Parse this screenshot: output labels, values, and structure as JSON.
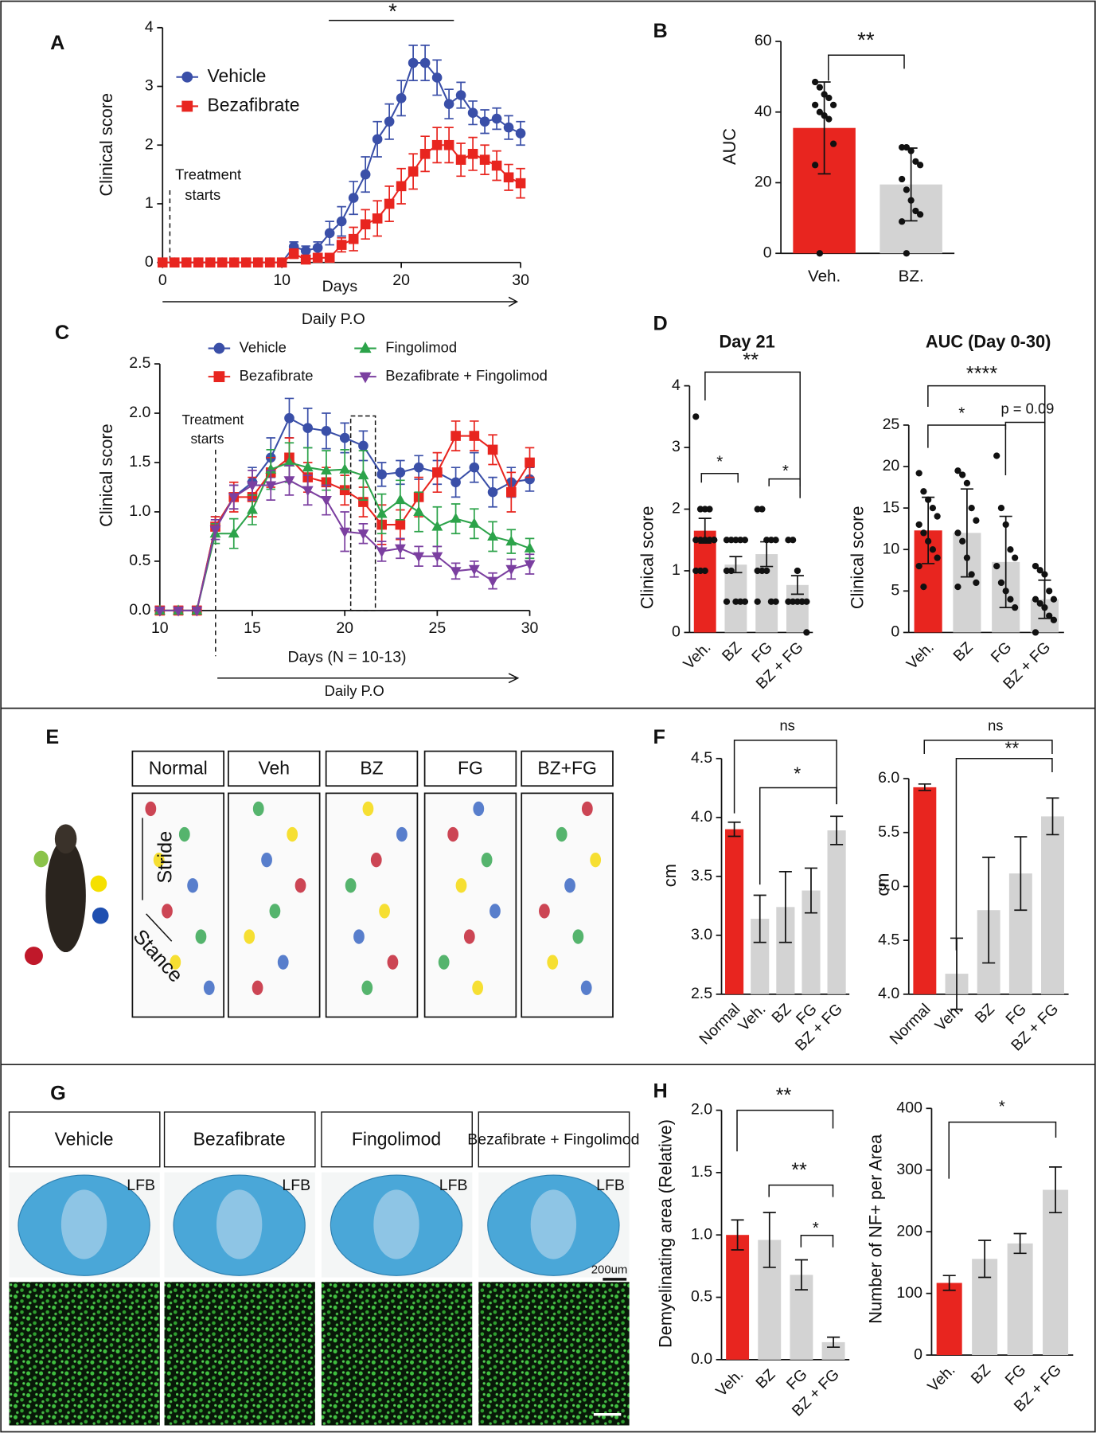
{
  "chart_data": [
    {
      "type": "line",
      "panel": "A",
      "y_label": "Clinical score",
      "x_label": "Days",
      "annotations": [
        "*",
        "Treatment",
        "starts",
        "Daily P.O"
      ],
      "x": [
        0,
        1,
        2,
        3,
        4,
        5,
        6,
        7,
        8,
        9,
        10,
        11,
        12,
        13,
        14,
        15,
        16,
        17,
        18,
        19,
        20,
        21,
        22,
        23,
        24,
        25,
        26,
        27,
        28,
        29,
        30
      ],
      "xlim": [
        0,
        30
      ],
      "xticks": [
        0,
        10,
        20,
        30
      ],
      "ylim": [
        0,
        4
      ],
      "yticks": [
        0,
        1,
        2,
        3,
        4
      ],
      "series": [
        {
          "name": "Vehicle",
          "color": "#3a4fa8",
          "marker": "circle",
          "values": [
            0,
            0,
            0,
            0,
            0,
            0,
            0,
            0,
            0,
            0,
            0,
            0.27,
            0.2,
            0.25,
            0.5,
            0.7,
            1.1,
            1.5,
            2.1,
            2.4,
            2.8,
            3.4,
            3.4,
            3.15,
            2.7,
            2.85,
            2.55,
            2.4,
            2.45,
            2.3,
            2.2
          ],
          "errors": [
            0,
            0,
            0,
            0,
            0,
            0,
            0,
            0,
            0,
            0,
            0,
            0.08,
            0.08,
            0.1,
            0.2,
            0.25,
            0.28,
            0.3,
            0.3,
            0.3,
            0.3,
            0.3,
            0.3,
            0.3,
            0.25,
            0.22,
            0.2,
            0.2,
            0.18,
            0.2,
            0.2
          ]
        },
        {
          "name": "Bezafibrate",
          "color": "#e8251f",
          "marker": "square",
          "values": [
            0,
            0,
            0,
            0,
            0,
            0,
            0,
            0,
            0,
            0,
            0,
            0.15,
            0.05,
            0.08,
            0.08,
            0.3,
            0.4,
            0.65,
            0.75,
            1.0,
            1.3,
            1.55,
            1.85,
            2.0,
            2.0,
            1.75,
            1.85,
            1.75,
            1.65,
            1.45,
            1.35
          ],
          "errors": [
            0,
            0,
            0,
            0,
            0,
            0,
            0,
            0,
            0,
            0,
            0,
            0.08,
            0.05,
            0.05,
            0.05,
            0.12,
            0.2,
            0.25,
            0.3,
            0.3,
            0.3,
            0.3,
            0.3,
            0.3,
            0.3,
            0.28,
            0.28,
            0.25,
            0.25,
            0.22,
            0.25
          ]
        }
      ]
    },
    {
      "type": "bar",
      "panel": "B",
      "y_label": "AUC",
      "annotations": [
        "**"
      ],
      "categories": [
        "Veh.",
        "BZ."
      ],
      "colors": [
        "#e8251f",
        "#d3d3d3"
      ],
      "values": [
        35.5,
        19.5
      ],
      "errors": [
        13,
        10.3
      ],
      "points": [
        [
          48.5,
          47,
          45,
          44,
          42,
          42,
          40,
          39,
          38,
          31,
          25,
          0
        ],
        [
          30,
          30,
          29,
          26,
          25,
          21,
          18,
          15,
          12,
          11,
          9,
          0
        ]
      ],
      "ylim": [
        0,
        60
      ],
      "yticks": [
        0,
        20,
        40,
        60
      ]
    },
    {
      "type": "line",
      "panel": "C",
      "y_label": "Clinical score",
      "x_label": "Days (N = 10-13)",
      "annotations": [
        "Treatment",
        "starts",
        "Daily P.O"
      ],
      "x": [
        10,
        11,
        12,
        13,
        14,
        15,
        16,
        17,
        18,
        19,
        20,
        21,
        22,
        23,
        24,
        25,
        26,
        27,
        28,
        29,
        30
      ],
      "xlim": [
        10,
        30
      ],
      "xticks": [
        10,
        15,
        20,
        25,
        30
      ],
      "ylim": [
        0,
        2.5
      ],
      "yticks": [
        {
          "value": 0,
          "label": "0.0"
        },
        0.5,
        {
          "value": 1,
          "label": "1.0"
        },
        1.5,
        {
          "value": 2,
          "label": "2.0"
        },
        2.5
      ],
      "series": [
        {
          "name": "Vehicle",
          "color": "#3a4fa8",
          "marker": "circle",
          "values": [
            0,
            0,
            0,
            0.85,
            1.15,
            1.3,
            1.55,
            1.95,
            1.85,
            1.82,
            1.75,
            1.67,
            1.38,
            1.4,
            1.45,
            1.4,
            1.3,
            1.45,
            1.2,
            1.3,
            1.33
          ],
          "errors": [
            0,
            0,
            0,
            0.1,
            0.12,
            0.15,
            0.2,
            0.2,
            0.2,
            0.18,
            0.15,
            0.15,
            0.12,
            0.12,
            0.12,
            0.12,
            0.15,
            0.15,
            0.15,
            0.15,
            0.12
          ]
        },
        {
          "name": "Bezafibrate",
          "color": "#e8251f",
          "marker": "square",
          "values": [
            0,
            0,
            0,
            0.85,
            1.15,
            1.15,
            1.4,
            1.55,
            1.35,
            1.3,
            1.22,
            1.1,
            0.87,
            0.87,
            1.15,
            1.4,
            1.77,
            1.77,
            1.63,
            1.2,
            1.5
          ],
          "errors": [
            0,
            0,
            0,
            0.1,
            0.15,
            0.2,
            0.15,
            0.2,
            0.15,
            0.15,
            0.15,
            0.15,
            0.2,
            0.15,
            0.2,
            0.2,
            0.15,
            0.15,
            0.15,
            0.2,
            0.15
          ]
        },
        {
          "name": "Fingolimod",
          "color": "#2ca34a",
          "marker": "triangle",
          "values": [
            0,
            0,
            0,
            0.78,
            0.78,
            1.02,
            1.43,
            1.5,
            1.45,
            1.42,
            1.43,
            1.37,
            0.98,
            1.12,
            1.0,
            0.85,
            0.93,
            0.88,
            0.75,
            0.7,
            0.63
          ],
          "errors": [
            0,
            0,
            0,
            0.1,
            0.15,
            0.15,
            0.2,
            0.2,
            0.2,
            0.2,
            0.2,
            0.25,
            0.2,
            0.2,
            0.2,
            0.2,
            0.15,
            0.15,
            0.15,
            0.12,
            0.1
          ]
        },
        {
          "name": "Bezafibrate + Fingolimod",
          "color": "#7b3fa0",
          "marker": "triangle-down",
          "values": [
            0,
            0,
            0,
            0.82,
            1.15,
            1.27,
            1.27,
            1.32,
            1.22,
            1.12,
            0.8,
            0.78,
            0.6,
            0.63,
            0.55,
            0.55,
            0.4,
            0.42,
            0.3,
            0.42,
            0.47
          ],
          "errors": [
            0,
            0,
            0,
            0.1,
            0.12,
            0.15,
            0.15,
            0.15,
            0.15,
            0.15,
            0.2,
            0.1,
            0.1,
            0.1,
            0.1,
            0.1,
            0.08,
            0.08,
            0.08,
            0.1,
            0.1
          ]
        }
      ]
    },
    {
      "type": "bar",
      "panel": "D",
      "title": "Day 21",
      "y_label": "Clinical score",
      "annotations": [
        "**",
        "*",
        "*"
      ],
      "categories": [
        "Veh.",
        "BZ",
        "FG",
        "BZ + FG"
      ],
      "colors": [
        "#e8251f",
        "#d3d3d3",
        "#d3d3d3",
        "#d3d3d3"
      ],
      "values": [
        1.65,
        1.1,
        1.27,
        0.77
      ],
      "errors": [
        0.2,
        0.13,
        0.2,
        0.15
      ],
      "points": [
        [
          3.5,
          2,
          2,
          2,
          1.5,
          1.5,
          1.5,
          1.5,
          1.5,
          1.5,
          1,
          1,
          1
        ],
        [
          1.5,
          1.5,
          1.5,
          1.5,
          1.5,
          1,
          1,
          0.5,
          0.5,
          0.5,
          0.5
        ],
        [
          2,
          2,
          1.5,
          1.5,
          1.5,
          1,
          1,
          1,
          0.5,
          0.5,
          0.5
        ],
        [
          1.5,
          1.5,
          1,
          0.5,
          0.5,
          0.5,
          0.5,
          0.5,
          0.5,
          0
        ]
      ],
      "ylim": [
        0,
        4
      ],
      "yticks": [
        0,
        1,
        2,
        3,
        4
      ]
    },
    {
      "type": "bar",
      "title": "AUC (Day 0-30)",
      "y_label": "Clinical score",
      "annotations": [
        "****",
        "*",
        "p = 0.09"
      ],
      "categories": [
        "Veh.",
        "BZ",
        "FG",
        "BZ + FG"
      ],
      "colors": [
        "#e8251f",
        "#d3d3d3",
        "#d3d3d3",
        "#d3d3d3"
      ],
      "values": [
        12.3,
        12.0,
        8.5,
        4.0
      ],
      "errors": [
        4,
        5.3,
        5.5,
        2.3
      ],
      "points": [
        [
          19.2,
          17,
          16,
          15,
          14,
          13,
          12,
          11,
          10,
          9,
          8,
          5.5
        ],
        [
          19.5,
          19,
          18,
          15,
          13.5,
          12,
          11,
          9,
          7,
          6,
          5.5
        ],
        [
          21.3,
          15,
          13,
          10,
          9,
          8,
          6,
          5,
          4,
          3
        ],
        [
          8,
          7.5,
          7,
          5,
          4,
          4,
          3.5,
          3,
          2,
          1.5,
          0
        ]
      ],
      "ylim": [
        0,
        25
      ],
      "yticks": [
        0,
        5,
        10,
        15,
        20,
        25
      ]
    },
    {
      "type": "bar",
      "panel": "F",
      "y_label": "cm",
      "annotations": [
        "ns",
        "*"
      ],
      "categories": [
        "Normal",
        "Veh.",
        "BZ",
        "FG",
        "BZ + FG"
      ],
      "colors": [
        "#e8251f",
        "#d3d3d3",
        "#d3d3d3",
        "#d3d3d3",
        "#d3d3d3"
      ],
      "values": [
        3.9,
        3.14,
        3.24,
        3.38,
        3.89
      ],
      "errors": [
        0.06,
        0.2,
        0.3,
        0.19,
        0.12
      ],
      "ylim": [
        2.5,
        4.5
      ],
      "yticks": [
        2.5,
        {
          "value": 3,
          "label": "3.0"
        },
        3.5,
        {
          "value": 4,
          "label": "4.0"
        },
        4.5
      ]
    },
    {
      "type": "bar",
      "y_label": "cm",
      "annotations": [
        "ns",
        "**"
      ],
      "categories": [
        "Normal",
        "Veh.",
        "BZ",
        "FG",
        "BZ + FG"
      ],
      "colors": [
        "#e8251f",
        "#d3d3d3",
        "#d3d3d3",
        "#d3d3d3",
        "#d3d3d3"
      ],
      "values": [
        5.92,
        4.19,
        4.78,
        5.12,
        5.65
      ],
      "errors": [
        0.03,
        0.33,
        0.49,
        0.34,
        0.17
      ],
      "ylim": [
        4,
        6
      ],
      "yticks": [
        {
          "value": 4,
          "label": "4.0"
        },
        4.5,
        {
          "value": 5,
          "label": "5.0"
        },
        5.5,
        {
          "value": 6,
          "label": "6.0"
        }
      ]
    },
    {
      "type": "bar",
      "panel": "H",
      "y_label": "Demyelinating area (Relative)",
      "annotations": [
        "**",
        "**",
        "*"
      ],
      "categories": [
        "Veh.",
        "BZ",
        "FG",
        "BZ + FG"
      ],
      "colors": [
        "#e8251f",
        "#d3d3d3",
        "#d3d3d3",
        "#d3d3d3"
      ],
      "values": [
        1.0,
        0.96,
        0.68,
        0.14
      ],
      "errors": [
        0.12,
        0.22,
        0.12,
        0.04
      ],
      "ylim": [
        0,
        2
      ],
      "yticks": [
        {
          "value": 0,
          "label": "0.0"
        },
        0.5,
        {
          "value": 1,
          "label": "1.0"
        },
        1.5,
        {
          "value": 2,
          "label": "2.0"
        }
      ]
    },
    {
      "type": "bar",
      "y_label": "Number of NF+ per Area",
      "annotations": [
        "*"
      ],
      "categories": [
        "Veh.",
        "BZ",
        "FG",
        "BZ + FG"
      ],
      "colors": [
        "#e8251f",
        "#d3d3d3",
        "#d3d3d3",
        "#d3d3d3"
      ],
      "values": [
        117,
        156,
        181,
        268
      ],
      "errors": [
        12,
        30,
        16,
        37
      ],
      "ylim": [
        0,
        400
      ],
      "yticks": [
        0,
        100,
        200,
        300,
        400
      ]
    }
  ],
  "panel_e": {
    "letter": "E",
    "columns": [
      "Normal",
      "Veh",
      "BZ",
      "FG",
      "BZ+FG"
    ],
    "stride": "Stride",
    "stance": "Stance"
  },
  "panel_g": {
    "letter": "G",
    "columns": [
      "Vehicle",
      "Bezafibrate",
      "Fingolimod",
      "Bezafibrate + Fingolimod"
    ],
    "stain": "LFB",
    "scale": "200um"
  }
}
